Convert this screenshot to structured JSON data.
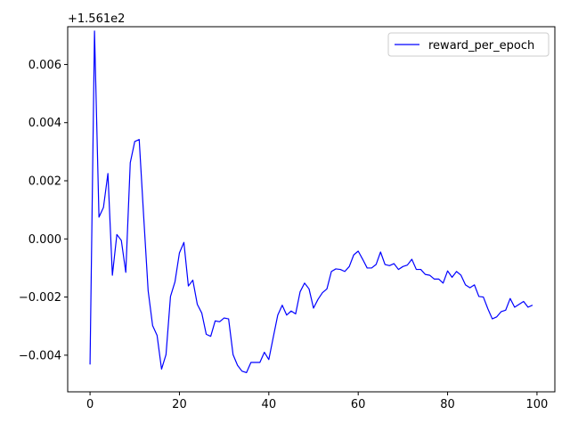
{
  "chart_data": {
    "type": "line",
    "offset_label": "+1.561e2",
    "xlim": [
      -5,
      104
    ],
    "ylim": [
      -0.00526,
      0.0073
    ],
    "x_ticks": [
      0,
      20,
      40,
      60,
      80,
      100
    ],
    "x_tick_labels": [
      "0",
      "20",
      "40",
      "60",
      "80",
      "100"
    ],
    "y_ticks": [
      -0.004,
      -0.002,
      0.0,
      0.002,
      0.004,
      0.006
    ],
    "y_tick_labels": [
      "−0.004",
      "−0.002",
      "0.000",
      "0.002",
      "0.004",
      "0.006"
    ],
    "legend_position": "upper right",
    "series": [
      {
        "name": "reward_per_epoch",
        "color": "#0000ff",
        "x": [
          0,
          1,
          2,
          3,
          4,
          5,
          6,
          7,
          8,
          9,
          10,
          11,
          12,
          13,
          14,
          15,
          16,
          17,
          18,
          19,
          20,
          21,
          22,
          23,
          24,
          25,
          26,
          27,
          28,
          29,
          30,
          31,
          32,
          33,
          34,
          35,
          36,
          37,
          38,
          39,
          40,
          41,
          42,
          43,
          44,
          45,
          46,
          47,
          48,
          49,
          50,
          51,
          52,
          53,
          54,
          55,
          56,
          57,
          58,
          59,
          60,
          61,
          62,
          63,
          64,
          65,
          66,
          67,
          68,
          69,
          70,
          71,
          72,
          73,
          74,
          75,
          76,
          77,
          78,
          79,
          80,
          81,
          82,
          83,
          84,
          85,
          86,
          87,
          88,
          89,
          90,
          91,
          92,
          93,
          94,
          95,
          96,
          97,
          98,
          99
        ],
        "y": [
          -0.00432,
          0.00715,
          0.00075,
          0.00108,
          0.00225,
          -0.00125,
          0.00015,
          -5e-05,
          -0.00115,
          0.00262,
          0.00335,
          0.00342,
          0.00078,
          -0.00178,
          -0.00298,
          -0.00332,
          -0.00448,
          -0.00398,
          -0.00198,
          -0.00148,
          -0.00048,
          -0.00012,
          -0.00162,
          -0.00142,
          -0.00225,
          -0.00255,
          -0.00328,
          -0.00335,
          -0.00282,
          -0.00285,
          -0.00272,
          -0.00275,
          -0.00398,
          -0.00435,
          -0.00455,
          -0.0046,
          -0.00425,
          -0.00425,
          -0.00425,
          -0.0039,
          -0.00415,
          -0.00338,
          -0.00262,
          -0.00228,
          -0.00262,
          -0.00248,
          -0.00258,
          -0.00182,
          -0.00152,
          -0.00172,
          -0.00238,
          -0.00208,
          -0.00185,
          -0.00172,
          -0.00112,
          -0.00103,
          -0.00105,
          -0.00112,
          -0.00095,
          -0.00055,
          -0.00042,
          -0.0007,
          -0.001,
          -0.001,
          -0.00088,
          -0.00045,
          -0.00088,
          -0.00092,
          -0.00085,
          -0.00105,
          -0.00095,
          -0.0009,
          -0.0007,
          -0.00105,
          -0.00105,
          -0.00122,
          -0.00125,
          -0.00138,
          -0.00138,
          -0.00152,
          -0.0011,
          -0.00132,
          -0.00112,
          -0.00125,
          -0.00158,
          -0.00168,
          -0.00158,
          -0.00198,
          -0.002,
          -0.0024,
          -0.00275,
          -0.00268,
          -0.0025,
          -0.00245,
          -0.00205,
          -0.00235,
          -0.00225,
          -0.00215,
          -0.00235,
          -0.00228
        ]
      }
    ]
  }
}
